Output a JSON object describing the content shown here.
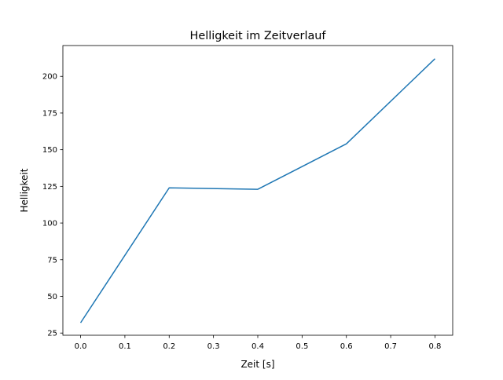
{
  "chart_data": {
    "type": "line",
    "title": "Helligkeit im Zeitverlauf",
    "xlabel": "Zeit [s]",
    "ylabel": "Helligkeit",
    "x": [
      0.0,
      0.2,
      0.4,
      0.6,
      0.8
    ],
    "series": [
      {
        "name": "Helligkeit",
        "values": [
          32,
          124,
          123,
          154,
          212
        ],
        "color": "#1f77b4"
      }
    ],
    "xlim": [
      -0.04,
      0.84
    ],
    "ylim": [
      23.5,
      221
    ],
    "xticks": [
      0.0,
      0.1,
      0.2,
      0.3,
      0.4,
      0.5,
      0.6,
      0.7,
      0.8
    ],
    "xtick_labels": [
      "0.0",
      "0.1",
      "0.2",
      "0.3",
      "0.4",
      "0.5",
      "0.6",
      "0.7",
      "0.8"
    ],
    "yticks": [
      25,
      50,
      75,
      100,
      125,
      150,
      175,
      200
    ],
    "ytick_labels": [
      "25",
      "50",
      "75",
      "100",
      "125",
      "150",
      "175",
      "200"
    ],
    "grid": false,
    "legend": "none"
  }
}
